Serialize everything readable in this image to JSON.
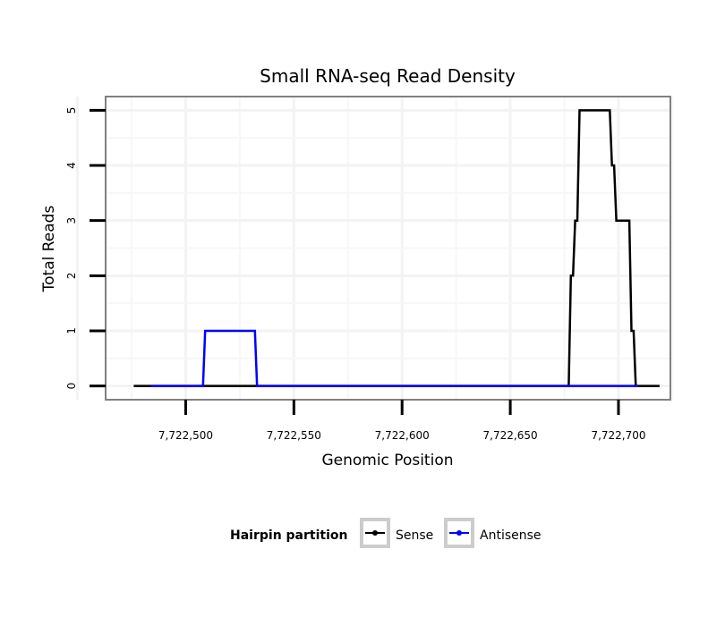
{
  "chart_data": {
    "type": "line",
    "title": "Small RNA-seq Read Density",
    "xlabel": "Genomic Position",
    "ylabel": "Total Reads",
    "xlim": [
      7722463,
      7722724
    ],
    "ylim": [
      -0.25,
      5.25
    ],
    "x_ticks": [
      7722500,
      7722550,
      7722600,
      7722650,
      7722700
    ],
    "x_tick_labels": [
      "7,722,500",
      "7,722,550",
      "7,722,600",
      "7,722,650",
      "7,722,700"
    ],
    "y_ticks": [
      0,
      1,
      2,
      3,
      4,
      5
    ],
    "y_tick_labels": [
      "0",
      "1",
      "2",
      "3",
      "4",
      "5"
    ],
    "grid": true,
    "legend": {
      "title": "Hairpin partition",
      "position": "bottom"
    },
    "series": [
      {
        "name": "Sense",
        "color": "#000000",
        "x": [
          7722476,
          7722677,
          7722678,
          7722679,
          7722680,
          7722681,
          7722682,
          7722683,
          7722684,
          7722696,
          7722697,
          7722698,
          7722699,
          7722705,
          7722706,
          7722707,
          7722708,
          7722709,
          7722710,
          7722719
        ],
        "y": [
          0,
          0,
          2,
          2,
          3,
          3,
          5,
          5,
          5,
          5,
          4,
          4,
          3,
          3,
          1,
          1,
          0,
          0,
          0,
          0
        ]
      },
      {
        "name": "Antisense",
        "color": "#0000ff",
        "x": [
          7722484,
          7722508,
          7722509,
          7722532,
          7722533,
          7722534,
          7722676,
          7722709
        ],
        "y": [
          0,
          0,
          1,
          1,
          0,
          0,
          0,
          0
        ]
      }
    ]
  }
}
